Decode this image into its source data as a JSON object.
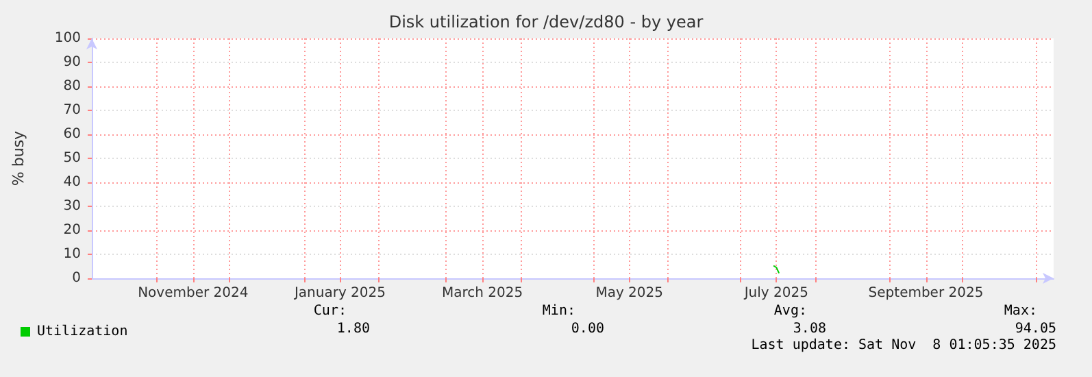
{
  "chart_data": {
    "type": "line",
    "title": "Disk utilization for /dev/zd80 - by year",
    "ylabel": "% busy",
    "xlim": [
      "2024-10-05",
      "2025-11-08"
    ],
    "xticks": [
      {
        "value": "2024-11-01",
        "label": null
      },
      {
        "value": "2024-11-16",
        "label": "November 2024"
      },
      {
        "value": "2024-12-01",
        "label": null
      },
      {
        "value": "2025-01-01",
        "label": null
      },
      {
        "value": "2025-01-16",
        "label": "January 2025"
      },
      {
        "value": "2025-02-01",
        "label": null
      },
      {
        "value": "2025-03-01",
        "label": null
      },
      {
        "value": "2025-03-16",
        "label": "March 2025"
      },
      {
        "value": "2025-04-01",
        "label": null
      },
      {
        "value": "2025-05-01",
        "label": null
      },
      {
        "value": "2025-05-16",
        "label": "May 2025"
      },
      {
        "value": "2025-06-01",
        "label": null
      },
      {
        "value": "2025-07-01",
        "label": null
      },
      {
        "value": "2025-07-16",
        "label": "July 2025"
      },
      {
        "value": "2025-08-01",
        "label": null
      },
      {
        "value": "2025-09-01",
        "label": null
      },
      {
        "value": "2025-09-16",
        "label": "September 2025"
      },
      {
        "value": "2025-10-01",
        "label": null
      },
      {
        "value": "2025-11-01",
        "label": null
      }
    ],
    "ylim": [
      0,
      100
    ],
    "yticks": [
      0,
      10,
      20,
      30,
      40,
      50,
      60,
      70,
      80,
      90,
      100
    ],
    "grid": true,
    "legend": "bottom left",
    "marker": "none",
    "line_style": "solid",
    "series": [
      {
        "name": "Utilization",
        "color": "#00cc00",
        "x": [
          "2025-07-15",
          "2025-07-16",
          "2025-07-17"
        ],
        "values": [
          5.1,
          4.5,
          2.3
        ]
      }
    ],
    "annotations": [
      "Cur:",
      "1.80",
      "Min:",
      "0.00",
      "Avg:",
      "3.08",
      "Max:",
      "94.05",
      "Last update: Sat Nov  8 01:05:35 2025"
    ]
  }
}
